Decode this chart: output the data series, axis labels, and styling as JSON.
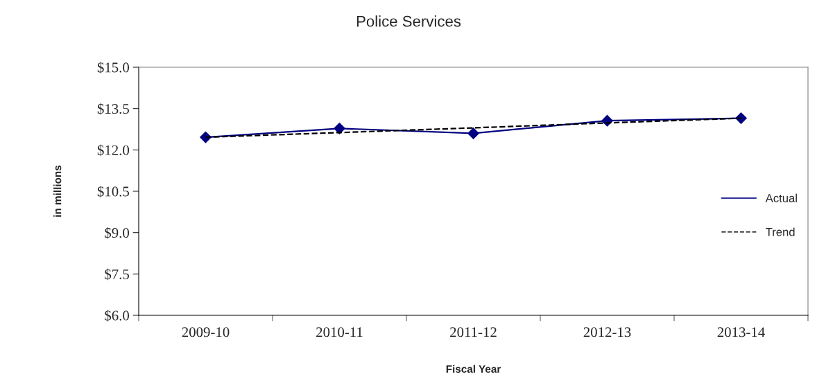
{
  "chart_data": {
    "type": "line",
    "title": "Police Services",
    "xlabel": "Fiscal Year",
    "ylabel": "in millions",
    "categories": [
      "2009-10",
      "2010-11",
      "2011-12",
      "2012-13",
      "2013-14"
    ],
    "series": [
      {
        "name": "Actual",
        "color": "#000080",
        "values": [
          12.46,
          12.78,
          12.6,
          13.06,
          13.15
        ],
        "marker": "diamond",
        "line_style": "solid"
      },
      {
        "name": "Trend",
        "color": "#000000",
        "values": [
          12.46,
          12.63,
          12.8,
          12.98,
          13.15
        ],
        "marker": "none",
        "line_style": "dashed"
      }
    ],
    "ylim": [
      6.0,
      15.0
    ],
    "yticks": [
      {
        "value": 6.0,
        "label": "$6.0"
      },
      {
        "value": 7.5,
        "label": "$7.5"
      },
      {
        "value": 9.0,
        "label": "$9.0"
      },
      {
        "value": 10.5,
        "label": "$10.5"
      },
      {
        "value": 12.0,
        "label": "$12.0"
      },
      {
        "value": 13.5,
        "label": "$13.5"
      },
      {
        "value": 15.0,
        "label": "$15.0"
      }
    ],
    "grid": false,
    "legend": "right"
  }
}
